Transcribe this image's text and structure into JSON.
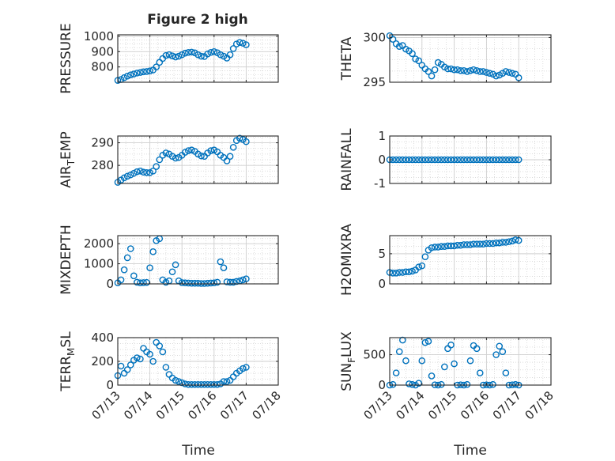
{
  "figure": {
    "title": "Figure 2 high",
    "xlabel": "Time",
    "x_ticks": [
      "07/13",
      "07/14",
      "07/15",
      "07/16",
      "07/17",
      "07/18"
    ]
  },
  "chart_data": [
    {
      "type": "scatter",
      "ylabel": "PRESSURE",
      "ylim": [
        700,
        1010
      ],
      "yticks": [
        "800",
        "900",
        "1000"
      ],
      "marker_color": "#0072BD",
      "x": [
        13.0,
        13.1,
        13.2,
        13.3,
        13.4,
        13.5,
        13.6,
        13.7,
        13.8,
        13.9,
        14.0,
        14.1,
        14.2,
        14.3,
        14.4,
        14.5,
        14.6,
        14.7,
        14.8,
        14.9,
        15.0,
        15.1,
        15.2,
        15.3,
        15.4,
        15.5,
        15.6,
        15.7,
        15.8,
        15.9,
        16.0,
        16.1,
        16.2,
        16.3,
        16.4,
        16.5,
        16.6,
        16.7,
        16.8,
        16.9,
        17.0
      ],
      "y": [
        712,
        718,
        730,
        740,
        748,
        754,
        760,
        764,
        768,
        770,
        774,
        780,
        800,
        830,
        855,
        875,
        880,
        872,
        865,
        870,
        880,
        890,
        895,
        897,
        892,
        880,
        870,
        868,
        885,
        895,
        900,
        893,
        880,
        870,
        858,
        880,
        920,
        950,
        960,
        955,
        945
      ]
    },
    {
      "type": "scatter",
      "ylabel": "THETA",
      "ylim": [
        295,
        300.3
      ],
      "yticks": [
        "295",
        "300"
      ],
      "marker_color": "#0072BD",
      "x": [
        13.0,
        13.1,
        13.2,
        13.3,
        13.4,
        13.5,
        13.6,
        13.7,
        13.8,
        13.9,
        14.0,
        14.1,
        14.2,
        14.3,
        14.4,
        14.5,
        14.6,
        14.7,
        14.8,
        14.9,
        15.0,
        15.1,
        15.2,
        15.3,
        15.4,
        15.5,
        15.6,
        15.7,
        15.8,
        15.9,
        16.0,
        16.1,
        16.2,
        16.3,
        16.4,
        16.5,
        16.6,
        16.7,
        16.8,
        16.9,
        17.0
      ],
      "y": [
        300.2,
        299.8,
        299.3,
        299.0,
        299.1,
        298.7,
        298.5,
        298.2,
        297.6,
        297.4,
        296.9,
        296.5,
        296.2,
        295.7,
        296.4,
        297.2,
        297.0,
        296.7,
        296.5,
        296.5,
        296.4,
        296.4,
        296.3,
        296.3,
        296.2,
        296.3,
        296.4,
        296.3,
        296.2,
        296.2,
        296.1,
        296.0,
        295.9,
        295.7,
        295.8,
        296.0,
        296.2,
        296.1,
        296.0,
        295.9,
        295.5
      ]
    },
    {
      "type": "scatter",
      "ylabel": "AIR_TEMP",
      "ylim": [
        272,
        293
      ],
      "yticks": [
        "280",
        "290"
      ],
      "marker_color": "#0072BD",
      "x": [
        13.0,
        13.1,
        13.2,
        13.3,
        13.4,
        13.5,
        13.6,
        13.7,
        13.8,
        13.9,
        14.0,
        14.1,
        14.2,
        14.3,
        14.4,
        14.5,
        14.6,
        14.7,
        14.8,
        14.9,
        15.0,
        15.1,
        15.2,
        15.3,
        15.4,
        15.5,
        15.6,
        15.7,
        15.8,
        15.9,
        16.0,
        16.1,
        16.2,
        16.3,
        16.4,
        16.5,
        16.6,
        16.7,
        16.8,
        16.9,
        17.0
      ],
      "y": [
        272.5,
        273.5,
        274.5,
        275.2,
        275.8,
        276.5,
        277.2,
        277.5,
        277.0,
        276.8,
        276.8,
        277.5,
        279.5,
        282.5,
        284.5,
        285.5,
        285.0,
        284.0,
        283.2,
        283.5,
        284.5,
        285.8,
        286.5,
        286.8,
        286.2,
        285.0,
        284.2,
        284.0,
        285.5,
        286.5,
        286.8,
        286.0,
        284.5,
        283.5,
        282.0,
        284.0,
        288.0,
        291.0,
        292.0,
        291.5,
        290.5
      ]
    },
    {
      "type": "scatter",
      "ylabel": "RAINFALL",
      "ylim": [
        -1,
        1
      ],
      "yticks": [
        "-1",
        "0",
        "1"
      ],
      "marker_color": "#0072BD",
      "x": [
        13.0,
        13.1,
        13.2,
        13.3,
        13.4,
        13.5,
        13.6,
        13.7,
        13.8,
        13.9,
        14.0,
        14.1,
        14.2,
        14.3,
        14.4,
        14.5,
        14.6,
        14.7,
        14.8,
        14.9,
        15.0,
        15.1,
        15.2,
        15.3,
        15.4,
        15.5,
        15.6,
        15.7,
        15.8,
        15.9,
        16.0,
        16.1,
        16.2,
        16.3,
        16.4,
        16.5,
        16.6,
        16.7,
        16.8,
        16.9,
        17.0
      ],
      "y": [
        0,
        0,
        0,
        0,
        0,
        0,
        0,
        0,
        0,
        0,
        0,
        0,
        0,
        0,
        0,
        0,
        0,
        0,
        0,
        0,
        0,
        0,
        0,
        0,
        0,
        0,
        0,
        0,
        0,
        0,
        0,
        0,
        0,
        0,
        0,
        0,
        0,
        0,
        0,
        0,
        0
      ]
    },
    {
      "type": "scatter",
      "ylabel": "MIXDEPTH",
      "ylim": [
        0,
        2400
      ],
      "yticks": [
        "0",
        "1000",
        "2000"
      ],
      "marker_color": "#0072BD",
      "x": [
        13.0,
        13.1,
        13.2,
        13.3,
        13.4,
        13.5,
        13.6,
        13.7,
        13.8,
        13.9,
        14.0,
        14.1,
        14.2,
        14.3,
        14.4,
        14.5,
        14.6,
        14.7,
        14.8,
        14.9,
        15.0,
        15.1,
        15.2,
        15.3,
        15.4,
        15.5,
        15.6,
        15.7,
        15.8,
        15.9,
        16.0,
        16.1,
        16.2,
        16.3,
        16.4,
        16.5,
        16.6,
        16.7,
        16.8,
        16.9,
        17.0
      ],
      "y": [
        50,
        200,
        700,
        1300,
        1750,
        400,
        80,
        50,
        60,
        70,
        800,
        1600,
        2150,
        2250,
        200,
        80,
        150,
        600,
        950,
        150,
        60,
        50,
        40,
        30,
        30,
        30,
        20,
        20,
        30,
        40,
        50,
        80,
        1100,
        800,
        100,
        80,
        80,
        120,
        150,
        200,
        250
      ]
    },
    {
      "type": "scatter",
      "ylabel": "H2OMIXRA",
      "ylim": [
        0,
        8
      ],
      "yticks": [
        "0",
        "5"
      ],
      "marker_color": "#0072BD",
      "x": [
        13.0,
        13.1,
        13.2,
        13.3,
        13.4,
        13.5,
        13.6,
        13.7,
        13.8,
        13.9,
        14.0,
        14.1,
        14.2,
        14.3,
        14.4,
        14.5,
        14.6,
        14.7,
        14.8,
        14.9,
        15.0,
        15.1,
        15.2,
        15.3,
        15.4,
        15.5,
        15.6,
        15.7,
        15.8,
        15.9,
        16.0,
        16.1,
        16.2,
        16.3,
        16.4,
        16.5,
        16.6,
        16.7,
        16.8,
        16.9,
        17.0
      ],
      "y": [
        1.9,
        1.8,
        1.8,
        1.9,
        1.9,
        2.0,
        2.0,
        2.1,
        2.3,
        2.8,
        3.0,
        4.5,
        5.6,
        6.0,
        6.1,
        6.1,
        6.2,
        6.2,
        6.3,
        6.3,
        6.3,
        6.4,
        6.4,
        6.5,
        6.5,
        6.5,
        6.6,
        6.6,
        6.6,
        6.6,
        6.7,
        6.7,
        6.7,
        6.8,
        6.8,
        6.9,
        6.9,
        7.0,
        7.1,
        7.3,
        7.2
      ]
    },
    {
      "type": "scatter",
      "ylabel": "TERR_MSL",
      "ylim": [
        0,
        400
      ],
      "yticks": [
        "0",
        "200",
        "400"
      ],
      "marker_color": "#0072BD",
      "x": [
        13.0,
        13.1,
        13.2,
        13.3,
        13.4,
        13.5,
        13.6,
        13.7,
        13.8,
        13.9,
        14.0,
        14.1,
        14.2,
        14.3,
        14.4,
        14.5,
        14.6,
        14.7,
        14.8,
        14.9,
        15.0,
        15.1,
        15.2,
        15.3,
        15.4,
        15.5,
        15.6,
        15.7,
        15.8,
        15.9,
        16.0,
        16.1,
        16.2,
        16.3,
        16.4,
        16.5,
        16.6,
        16.7,
        16.8,
        16.9,
        17.0
      ],
      "y": [
        80,
        160,
        100,
        130,
        170,
        210,
        230,
        220,
        310,
        280,
        260,
        200,
        360,
        330,
        280,
        150,
        90,
        60,
        40,
        30,
        20,
        10,
        5,
        5,
        5,
        5,
        5,
        5,
        5,
        5,
        5,
        5,
        10,
        30,
        30,
        40,
        70,
        100,
        120,
        140,
        150
      ]
    },
    {
      "type": "scatter",
      "ylabel": "SUN_FLUX",
      "ylim": [
        0,
        780
      ],
      "yticks": [
        "0",
        "500"
      ],
      "marker_color": "#0072BD",
      "x": [
        13.0,
        13.1,
        13.2,
        13.3,
        13.4,
        13.5,
        13.6,
        13.7,
        13.8,
        13.9,
        14.0,
        14.1,
        14.2,
        14.3,
        14.4,
        14.5,
        14.6,
        14.7,
        14.8,
        14.9,
        15.0,
        15.1,
        15.2,
        15.3,
        15.4,
        15.5,
        15.6,
        15.7,
        15.8,
        15.9,
        16.0,
        16.1,
        16.2,
        16.3,
        16.4,
        16.5,
        16.6,
        16.7,
        16.8,
        16.9,
        17.0
      ],
      "y": [
        0,
        10,
        200,
        550,
        740,
        400,
        20,
        10,
        0,
        30,
        400,
        700,
        720,
        150,
        5,
        0,
        10,
        300,
        600,
        660,
        350,
        0,
        5,
        0,
        10,
        400,
        650,
        600,
        200,
        0,
        5,
        0,
        10,
        500,
        640,
        550,
        200,
        0,
        5,
        10,
        0
      ]
    }
  ]
}
